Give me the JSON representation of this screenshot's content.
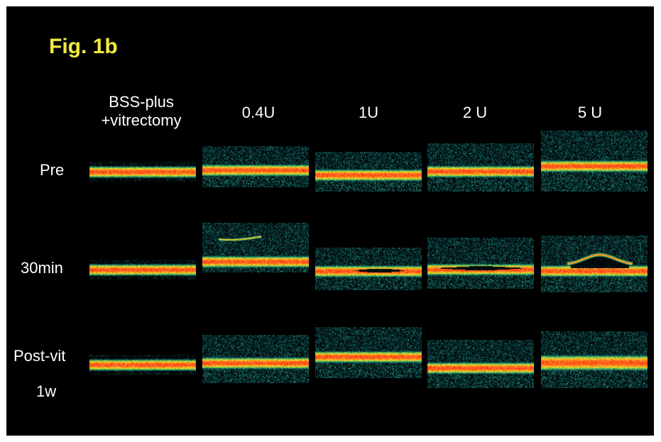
{
  "figure": {
    "title": "Fig. 1b",
    "columns": [
      {
        "label_line1": "BSS-plus",
        "label_line2": "+vitrectomy"
      },
      {
        "label_line1": "0.4U",
        "label_line2": ""
      },
      {
        "label_line1": "1U",
        "label_line2": ""
      },
      {
        "label_line1": "2 U",
        "label_line2": ""
      },
      {
        "label_line1": "5 U",
        "label_line2": ""
      }
    ],
    "rows": [
      {
        "label_line1": "Pre",
        "label_line2": ""
      },
      {
        "label_line1": "30min",
        "label_line2": ""
      },
      {
        "label_line1": "Post-vit",
        "label_line2": "1w"
      }
    ]
  },
  "colors": {
    "background": "#000000",
    "title": "#f2ea3d",
    "label": "#ffffff",
    "band_core": "#ff3a1a",
    "band_mid": "#ffb020",
    "band_outer": "#9ad83a",
    "noise": "#1f8a8a"
  }
}
